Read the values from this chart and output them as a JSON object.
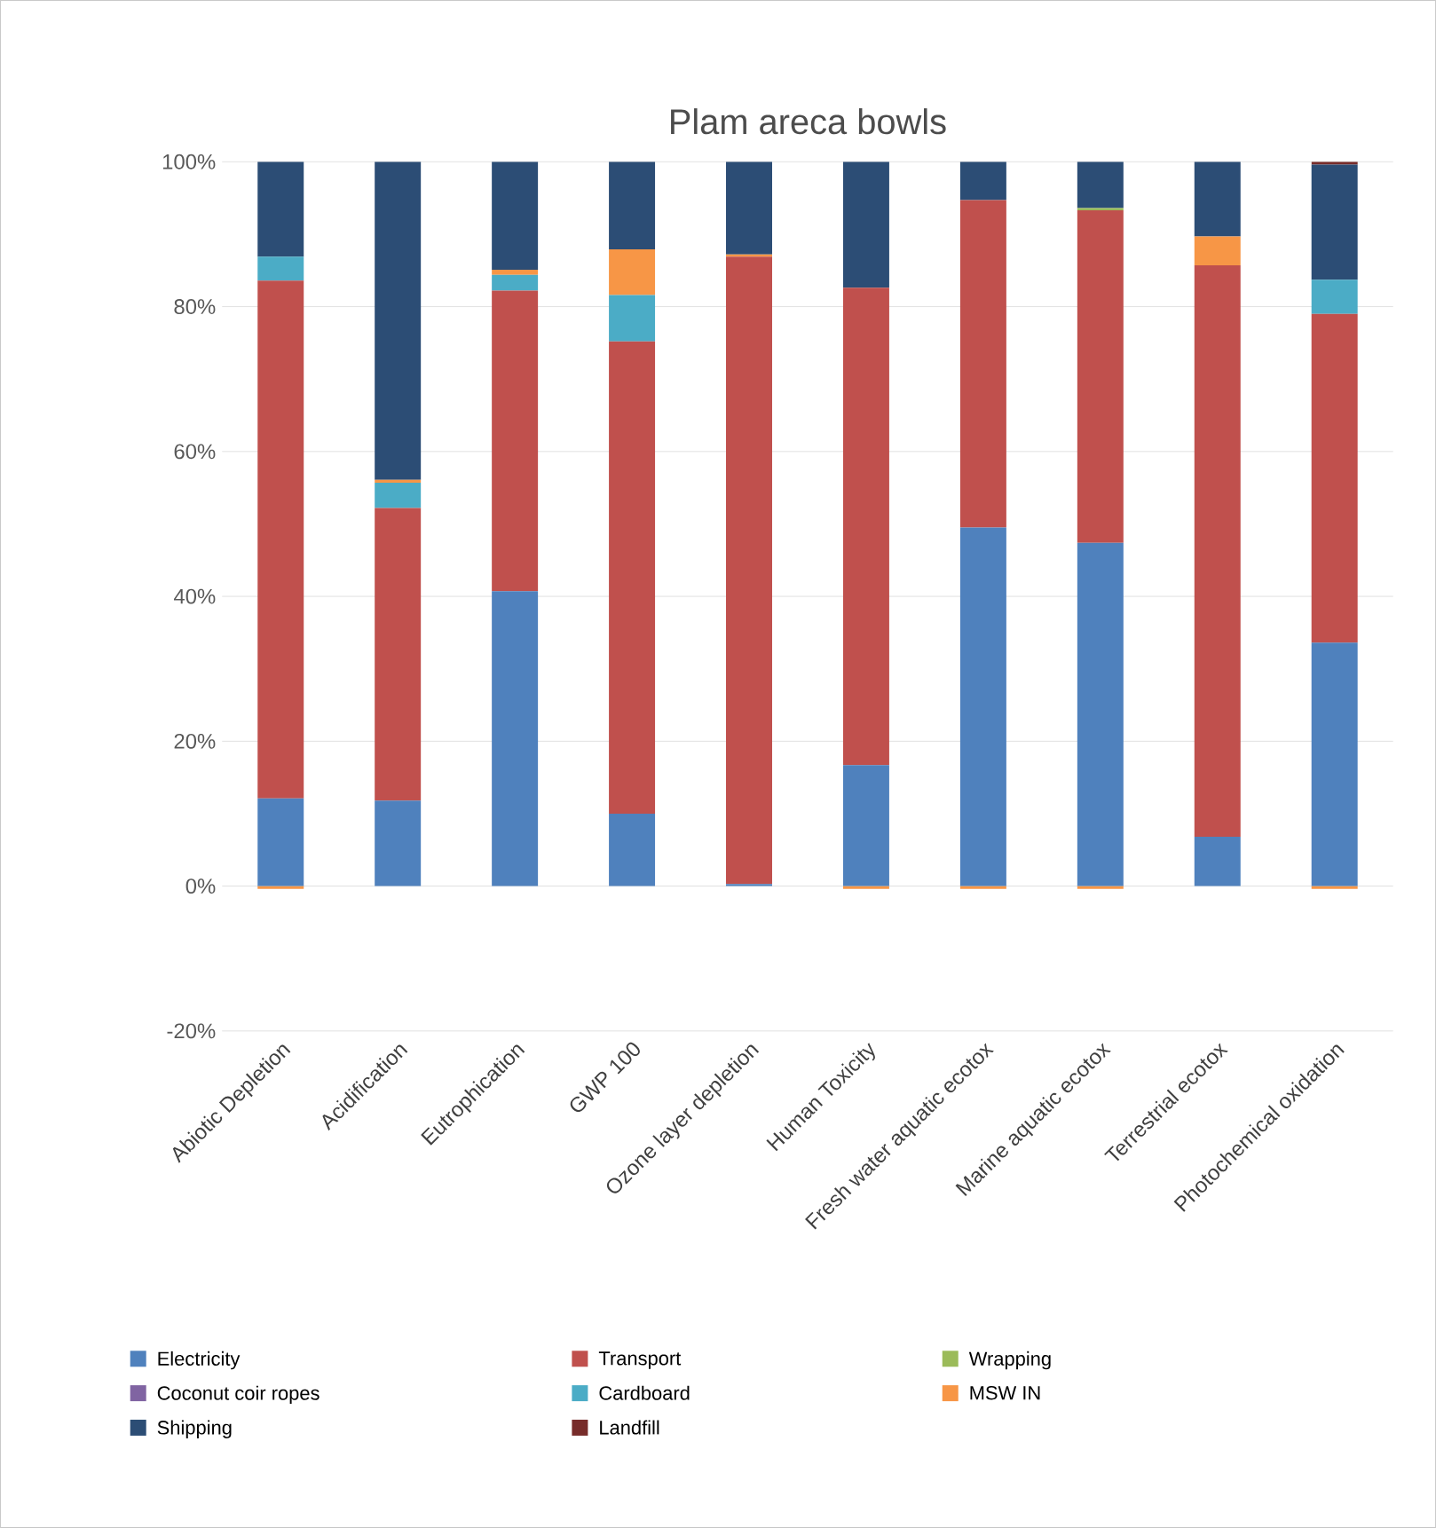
{
  "chart_data": {
    "type": "bar",
    "title": "Plam areca bowls",
    "stacked": true,
    "categories": [
      "Abiotic Depletion",
      "Acidification",
      "Eutrophication",
      "GWP 100",
      "Ozone layer depletion",
      "Human Toxicity",
      "Fresh water aquatic ecotox",
      "Marine aquatic ecotox",
      "Terrestrial ecotox",
      "Photochemical oxidation"
    ],
    "series": [
      {
        "name": "Electricity",
        "color": "#4f81bd",
        "values": [
          12.1,
          11.8,
          40.7,
          10.0,
          0.3,
          16.7,
          49.5,
          47.4,
          6.8,
          33.6
        ]
      },
      {
        "name": "Transport",
        "color": "#c0504d",
        "values": [
          71.5,
          40.4,
          41.5,
          65.2,
          86.6,
          65.9,
          45.2,
          45.9,
          78.9,
          45.4
        ]
      },
      {
        "name": "Wrapping",
        "color": "#9bbb59",
        "values": [
          0,
          0,
          0,
          0,
          0,
          0,
          0,
          0.3,
          0,
          0
        ]
      },
      {
        "name": "Coconut coir ropes",
        "color": "#8064a2",
        "values": [
          0,
          0,
          0,
          0,
          0,
          0,
          0,
          0,
          0,
          0
        ]
      },
      {
        "name": "Cardboard",
        "color": "#4bacc6",
        "values": [
          3.3,
          3.5,
          2.2,
          6.4,
          0,
          0,
          0,
          0,
          0,
          4.7
        ]
      },
      {
        "name": "MSW IN",
        "color": "#f79646",
        "values": [
          -0.4,
          0.4,
          0.7,
          6.3,
          0.3,
          -0.4,
          -0.4,
          -0.4,
          4.0,
          -0.4
        ]
      },
      {
        "name": "Shipping",
        "color": "#2c4d75",
        "values": [
          13.1,
          43.9,
          14.9,
          12.1,
          12.8,
          17.4,
          5.3,
          6.4,
          10.3,
          15.9
        ]
      },
      {
        "name": "Landfill",
        "color": "#772c2a",
        "values": [
          0,
          0,
          0,
          0,
          0,
          0,
          0,
          0,
          0,
          0.4
        ]
      }
    ],
    "ylim": [
      -20,
      100
    ],
    "yticks": [
      {
        "value": -20,
        "label": "-20%"
      },
      {
        "value": 0,
        "label": "0%"
      },
      {
        "value": 20,
        "label": "20%"
      },
      {
        "value": 40,
        "label": "40%"
      },
      {
        "value": 60,
        "label": "60%"
      },
      {
        "value": 80,
        "label": "80%"
      },
      {
        "value": 100,
        "label": "100%"
      }
    ],
    "grid": "y",
    "legend": "bottom"
  }
}
